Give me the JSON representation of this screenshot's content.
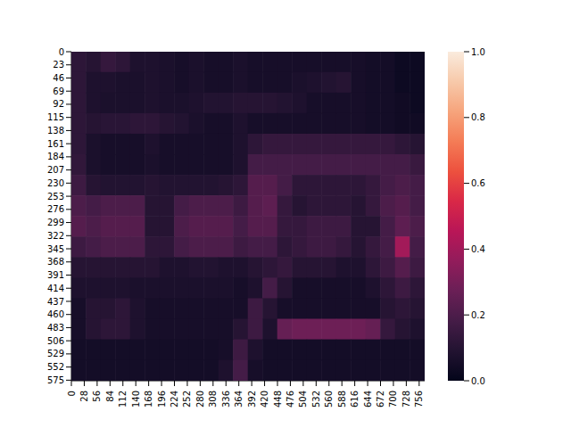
{
  "chart_data": {
    "type": "heatmap",
    "xlim": [
      0,
      768
    ],
    "ylim": [
      0,
      576
    ],
    "xticks": [
      0,
      28,
      56,
      84,
      112,
      140,
      168,
      196,
      224,
      252,
      280,
      308,
      336,
      364,
      392,
      420,
      448,
      476,
      504,
      532,
      560,
      588,
      616,
      644,
      672,
      700,
      728,
      756
    ],
    "yticks": [
      0,
      23,
      46,
      69,
      92,
      115,
      138,
      161,
      184,
      207,
      230,
      253,
      276,
      299,
      322,
      345,
      368,
      391,
      414,
      437,
      460,
      483,
      506,
      529,
      552,
      575
    ],
    "cells": [
      [
        0.12,
        0.1,
        0.14,
        0.12,
        0.08,
        0.08,
        0.07,
        0.06,
        0.07,
        0.06,
        0.06,
        0.07,
        0.06,
        0.06,
        0.06,
        0.06,
        0.06,
        0.06,
        0.06,
        0.06,
        0.05,
        0.05,
        0.03,
        0.03
      ],
      [
        0.12,
        0.08,
        0.08,
        0.07,
        0.07,
        0.08,
        0.07,
        0.06,
        0.07,
        0.06,
        0.06,
        0.07,
        0.06,
        0.06,
        0.06,
        0.07,
        0.08,
        0.09,
        0.1,
        0.06,
        0.05,
        0.05,
        0.03,
        0.03
      ],
      [
        0.12,
        0.08,
        0.07,
        0.07,
        0.07,
        0.08,
        0.07,
        0.07,
        0.08,
        0.09,
        0.09,
        0.1,
        0.1,
        0.1,
        0.09,
        0.08,
        0.06,
        0.06,
        0.06,
        0.06,
        0.05,
        0.05,
        0.04,
        0.03
      ],
      [
        0.12,
        0.1,
        0.11,
        0.11,
        0.12,
        0.12,
        0.1,
        0.09,
        0.07,
        0.06,
        0.06,
        0.08,
        0.06,
        0.06,
        0.06,
        0.06,
        0.06,
        0.06,
        0.06,
        0.06,
        0.05,
        0.05,
        0.04,
        0.04
      ],
      [
        0.12,
        0.07,
        0.06,
        0.06,
        0.06,
        0.08,
        0.06,
        0.06,
        0.06,
        0.06,
        0.06,
        0.08,
        0.12,
        0.14,
        0.14,
        0.14,
        0.14,
        0.14,
        0.14,
        0.14,
        0.14,
        0.14,
        0.12,
        0.1
      ],
      [
        0.13,
        0.07,
        0.06,
        0.06,
        0.06,
        0.07,
        0.06,
        0.06,
        0.06,
        0.06,
        0.06,
        0.08,
        0.18,
        0.18,
        0.18,
        0.18,
        0.18,
        0.18,
        0.18,
        0.18,
        0.18,
        0.18,
        0.18,
        0.15
      ],
      [
        0.16,
        0.1,
        0.09,
        0.09,
        0.09,
        0.1,
        0.09,
        0.09,
        0.09,
        0.09,
        0.1,
        0.12,
        0.22,
        0.22,
        0.18,
        0.12,
        0.12,
        0.12,
        0.12,
        0.12,
        0.14,
        0.18,
        0.2,
        0.18
      ],
      [
        0.2,
        0.18,
        0.2,
        0.2,
        0.2,
        0.1,
        0.1,
        0.18,
        0.2,
        0.2,
        0.2,
        0.16,
        0.22,
        0.24,
        0.14,
        0.1,
        0.12,
        0.12,
        0.12,
        0.1,
        0.14,
        0.2,
        0.22,
        0.18
      ],
      [
        0.22,
        0.2,
        0.22,
        0.22,
        0.22,
        0.1,
        0.1,
        0.2,
        0.22,
        0.22,
        0.22,
        0.18,
        0.22,
        0.22,
        0.14,
        0.14,
        0.16,
        0.16,
        0.16,
        0.1,
        0.1,
        0.18,
        0.24,
        0.2
      ],
      [
        0.16,
        0.18,
        0.2,
        0.2,
        0.2,
        0.12,
        0.12,
        0.18,
        0.2,
        0.2,
        0.2,
        0.16,
        0.18,
        0.18,
        0.12,
        0.14,
        0.16,
        0.16,
        0.14,
        0.1,
        0.14,
        0.18,
        0.4,
        0.18
      ],
      [
        0.1,
        0.1,
        0.1,
        0.1,
        0.1,
        0.1,
        0.08,
        0.08,
        0.09,
        0.09,
        0.08,
        0.08,
        0.1,
        0.12,
        0.14,
        0.1,
        0.1,
        0.1,
        0.08,
        0.08,
        0.12,
        0.16,
        0.22,
        0.16
      ],
      [
        0.08,
        0.08,
        0.08,
        0.08,
        0.07,
        0.07,
        0.07,
        0.07,
        0.07,
        0.07,
        0.07,
        0.06,
        0.08,
        0.18,
        0.1,
        0.06,
        0.06,
        0.06,
        0.06,
        0.06,
        0.08,
        0.12,
        0.16,
        0.12
      ],
      [
        0.06,
        0.1,
        0.1,
        0.12,
        0.08,
        0.06,
        0.06,
        0.06,
        0.06,
        0.06,
        0.06,
        0.06,
        0.16,
        0.1,
        0.06,
        0.06,
        0.06,
        0.06,
        0.06,
        0.06,
        0.06,
        0.1,
        0.12,
        0.1
      ],
      [
        0.06,
        0.1,
        0.12,
        0.12,
        0.08,
        0.06,
        0.06,
        0.06,
        0.06,
        0.06,
        0.06,
        0.1,
        0.16,
        0.08,
        0.26,
        0.28,
        0.28,
        0.28,
        0.28,
        0.28,
        0.26,
        0.14,
        0.1,
        0.08
      ],
      [
        0.05,
        0.05,
        0.05,
        0.05,
        0.05,
        0.05,
        0.05,
        0.05,
        0.05,
        0.05,
        0.06,
        0.16,
        0.08,
        0.05,
        0.05,
        0.05,
        0.05,
        0.05,
        0.05,
        0.05,
        0.05,
        0.05,
        0.05,
        0.05
      ],
      [
        0.05,
        0.05,
        0.05,
        0.05,
        0.05,
        0.05,
        0.05,
        0.05,
        0.05,
        0.05,
        0.08,
        0.18,
        0.06,
        0.05,
        0.05,
        0.05,
        0.05,
        0.05,
        0.05,
        0.05,
        0.05,
        0.05,
        0.05,
        0.05
      ]
    ],
    "colorbar": {
      "range": [
        0,
        1
      ],
      "ticks": [
        {
          "value": 0,
          "label": "0.0"
        },
        {
          "value": 0.2,
          "label": "0.2"
        },
        {
          "value": 0.4,
          "label": "0.4"
        },
        {
          "value": 0.6,
          "label": "0.6"
        },
        {
          "value": 0.8,
          "label": "0.8"
        },
        {
          "value": 1,
          "label": "1.0"
        }
      ]
    }
  }
}
